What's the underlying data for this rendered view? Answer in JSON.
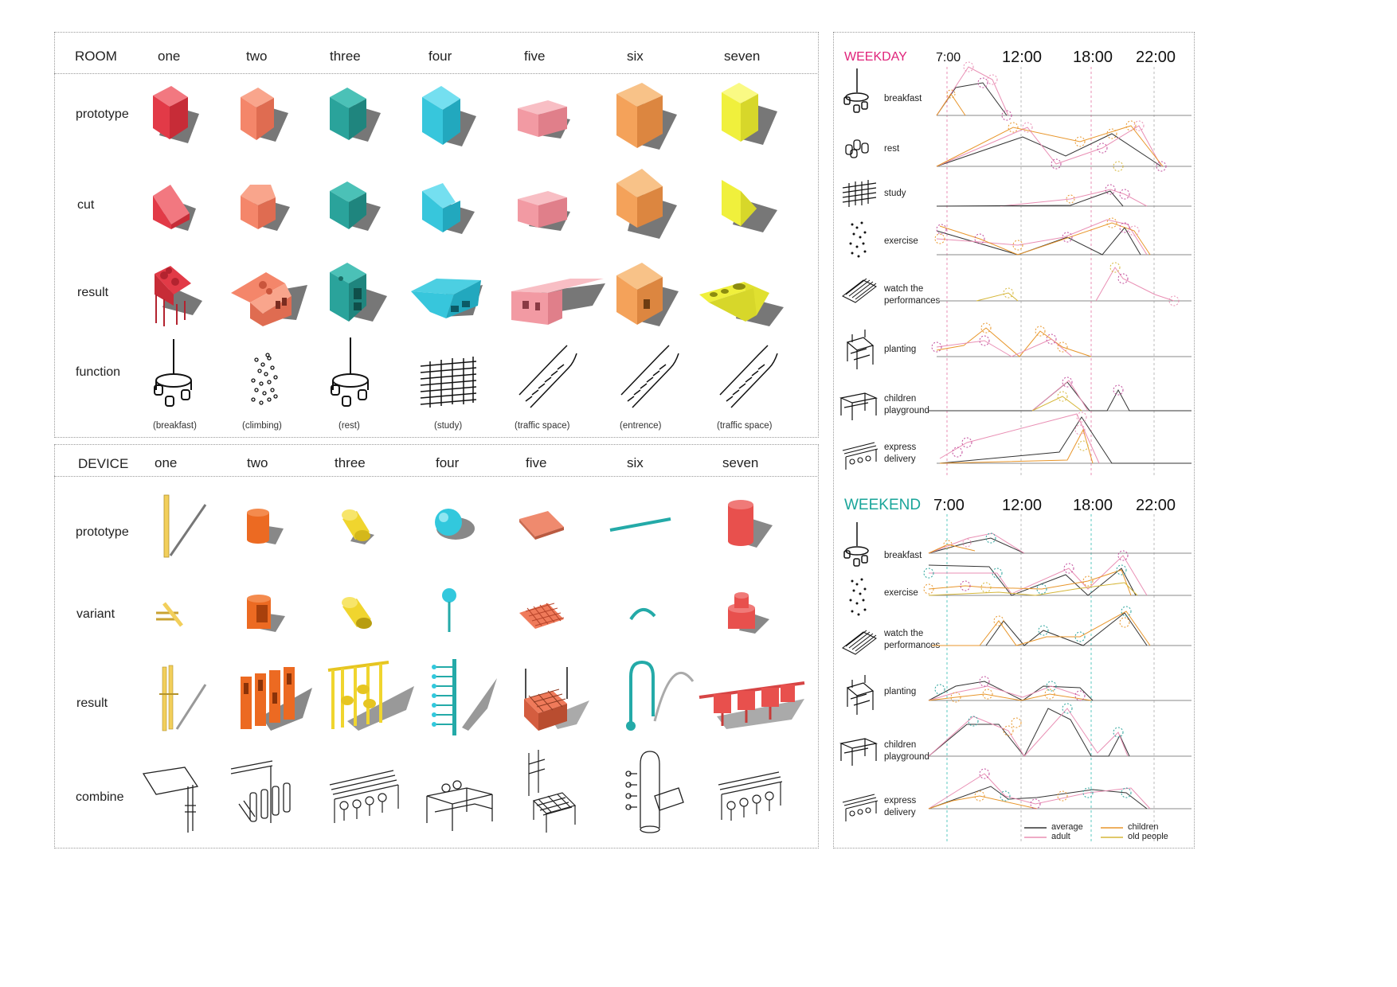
{
  "room": {
    "header": "ROOM",
    "columns": [
      "one",
      "two",
      "three",
      "four",
      "five",
      "six",
      "seven"
    ],
    "rows": [
      "prototype",
      "cut",
      "result",
      "function"
    ],
    "function_captions": [
      "(breakfast)",
      "(climbing)",
      "(rest)",
      "(study)",
      "(traffic space)",
      "(entrence)",
      "(traffic space)"
    ],
    "colors": [
      "#e94a55",
      "#f4866a",
      "#2aa39b",
      "#37c6dc",
      "#f29aa3",
      "#f4a25a",
      "#f0f03c"
    ]
  },
  "device": {
    "header": "DEVICE",
    "columns": [
      "one",
      "two",
      "three",
      "four",
      "five",
      "six",
      "seven"
    ],
    "rows": [
      "prototype",
      "variant",
      "result",
      "combine"
    ],
    "colors": [
      "#f2cf5b",
      "#ec6a22",
      "#f0d52e",
      "#32c8dd",
      "#ef8a6e",
      "#24aaa8",
      "#e8504d"
    ]
  },
  "schedule": {
    "times": [
      "7:00",
      "12:00",
      "18:00",
      "22:00"
    ],
    "weekday": {
      "title": "WEEKDAY",
      "title_color": "#e0237a",
      "activities": [
        "breakfast",
        "rest",
        "study",
        "exercise",
        "watch the performances",
        "planting",
        "children playground",
        "express delivery"
      ]
    },
    "weekend": {
      "title": "WEEKEND",
      "title_color": "#1aa59a",
      "activities": [
        "breakfast",
        "exercise",
        "watch the performances",
        "planting",
        "children playground",
        "express delivery"
      ]
    },
    "legend": [
      {
        "label": "average",
        "color": "#333333"
      },
      {
        "label": "adult",
        "color": "#e98fb4"
      },
      {
        "label": "children",
        "color": "#e8962b"
      },
      {
        "label": "old people",
        "color": "#d6b73a"
      }
    ]
  }
}
